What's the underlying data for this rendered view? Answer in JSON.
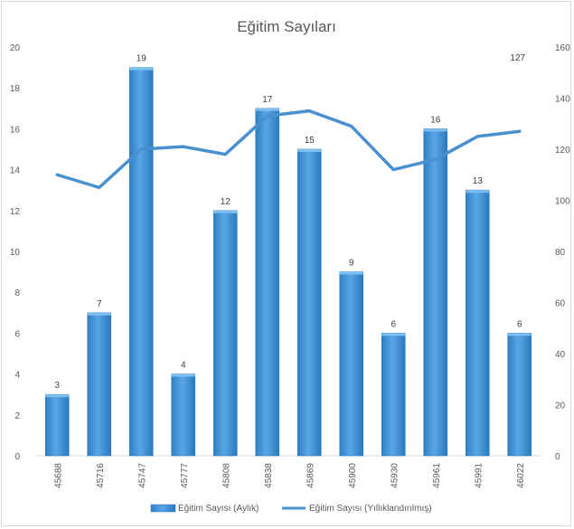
{
  "chart_data": {
    "type": "bar",
    "title": "Eğitim Sayıları",
    "categories": [
      "45688",
      "45716",
      "45747",
      "45777",
      "45808",
      "45838",
      "45869",
      "45900",
      "45930",
      "45961",
      "45991",
      "46022"
    ],
    "series": [
      {
        "name": "Eğitim Sayısı (Aylık)",
        "type": "bar",
        "axis": "left",
        "color": "#3f8fd2",
        "values": [
          3,
          7,
          19,
          4,
          12,
          17,
          15,
          9,
          6,
          16,
          13,
          6
        ],
        "data_labels": [
          "3",
          "7",
          "19",
          "4",
          "12",
          "17",
          "15",
          "9",
          "6",
          "16",
          "13",
          "6"
        ]
      },
      {
        "name": "Eğitim Sayısı (Yıllıklandırılmış)",
        "type": "line",
        "axis": "right",
        "color": "#4a90d0",
        "values": [
          110,
          105,
          120,
          121,
          118,
          133,
          135,
          129,
          112,
          116,
          125,
          127
        ],
        "data_labels": [
          "",
          "",
          "",
          "",
          "",
          "",
          "",
          "",
          "",
          "",
          "",
          "127"
        ]
      }
    ],
    "y_left": {
      "min": 0,
      "max": 20,
      "ticks": [
        "0",
        "2",
        "4",
        "6",
        "8",
        "10",
        "12",
        "14",
        "16",
        "18",
        "20"
      ]
    },
    "y_right": {
      "min": 0,
      "max": 160,
      "ticks": [
        "0",
        "20",
        "40",
        "60",
        "80",
        "100",
        "120",
        "140",
        "160"
      ]
    },
    "grid": false,
    "legend": "bottom"
  }
}
